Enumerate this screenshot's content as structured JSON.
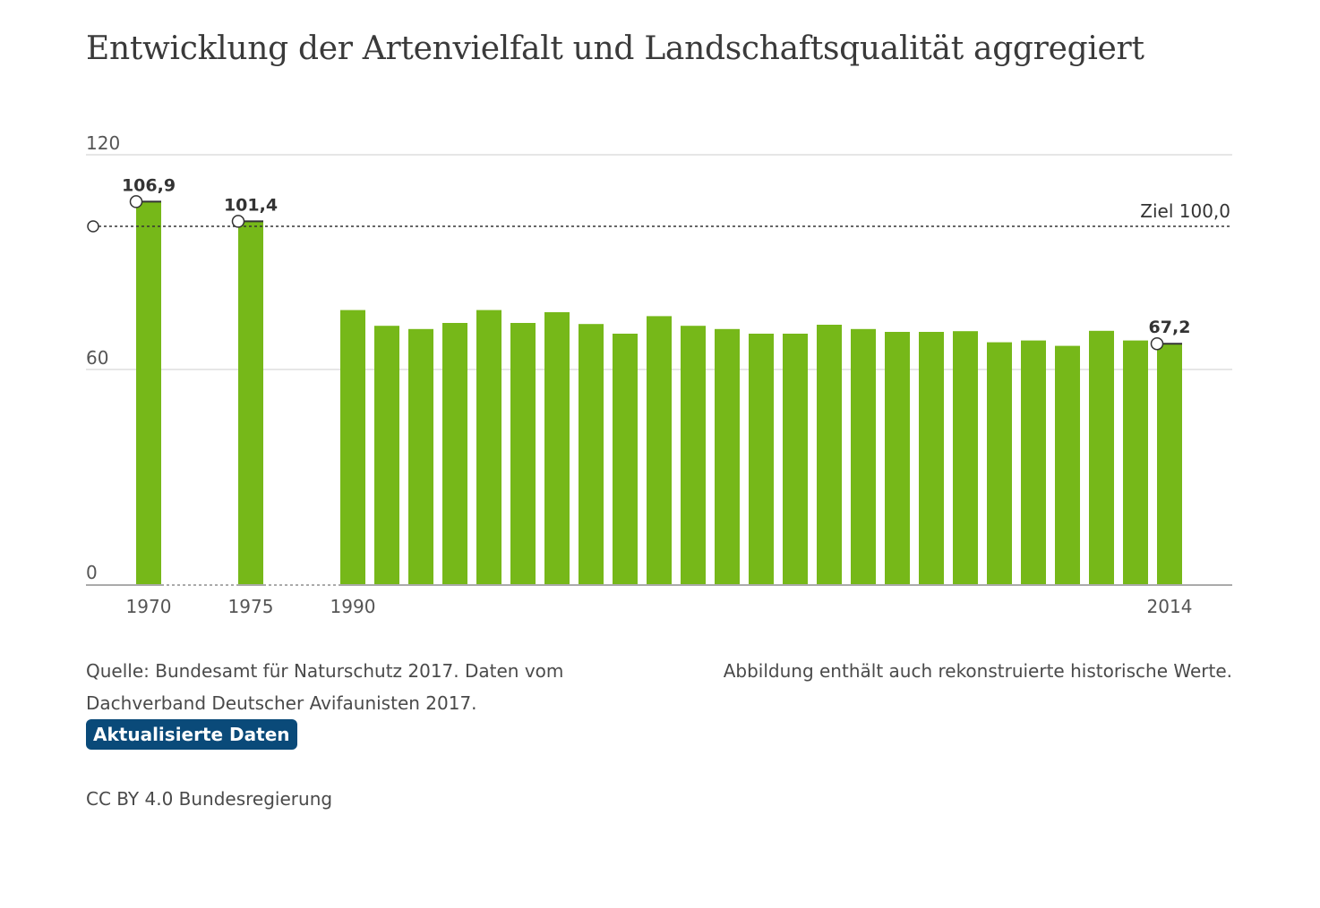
{
  "chart_data": {
    "type": "bar",
    "title": "Entwicklung der Artenvielfalt und Landschaftsqualität aggregiert",
    "xlabel": "",
    "ylabel": "",
    "ylim": [
      0,
      120
    ],
    "yticks": [
      "0",
      "60",
      "120"
    ],
    "grid": true,
    "categories": [
      1970,
      1975,
      1990,
      1991,
      1992,
      1993,
      1994,
      1995,
      1996,
      1997,
      1998,
      1999,
      2000,
      2001,
      2002,
      2003,
      2004,
      2005,
      2006,
      2007,
      2008,
      2009,
      2010,
      2011,
      2012,
      2013,
      2014
    ],
    "xtick_labels": [
      "1970",
      "1975",
      "1990",
      "2014"
    ],
    "values": [
      106.9,
      101.4,
      76.6,
      72.2,
      71.3,
      73.0,
      76.6,
      73.0,
      76.0,
      72.7,
      70.0,
      74.9,
      72.2,
      71.3,
      70.0,
      70.0,
      72.5,
      71.3,
      70.5,
      70.5,
      70.7,
      67.6,
      68.1,
      66.6,
      70.8,
      68.1,
      67.2
    ],
    "value_labels": [
      {
        "year": 1970,
        "text": "106,9"
      },
      {
        "year": 1975,
        "text": "101,4"
      },
      {
        "year": 2014,
        "text": "67,2"
      }
    ],
    "target": {
      "value": 100,
      "label": "Ziel 100,0"
    },
    "colors": {
      "bar": "#76b819",
      "grid": "#cccccc",
      "axis": "#aaaaaa",
      "target_line": "#333333",
      "marker_fill": "#ffffff",
      "marker_stroke": "#333333"
    }
  },
  "footer": {
    "source": "Quelle: Bundesamt für Naturschutz 2017. Daten vom Dachverband Deutscher Avifaunisten 2017.",
    "note": "Abbildung enthält auch rekonstruierte historische Werte.",
    "badge": "Aktualisierte Daten",
    "license": "CC BY 4.0 Bundesregierung"
  }
}
